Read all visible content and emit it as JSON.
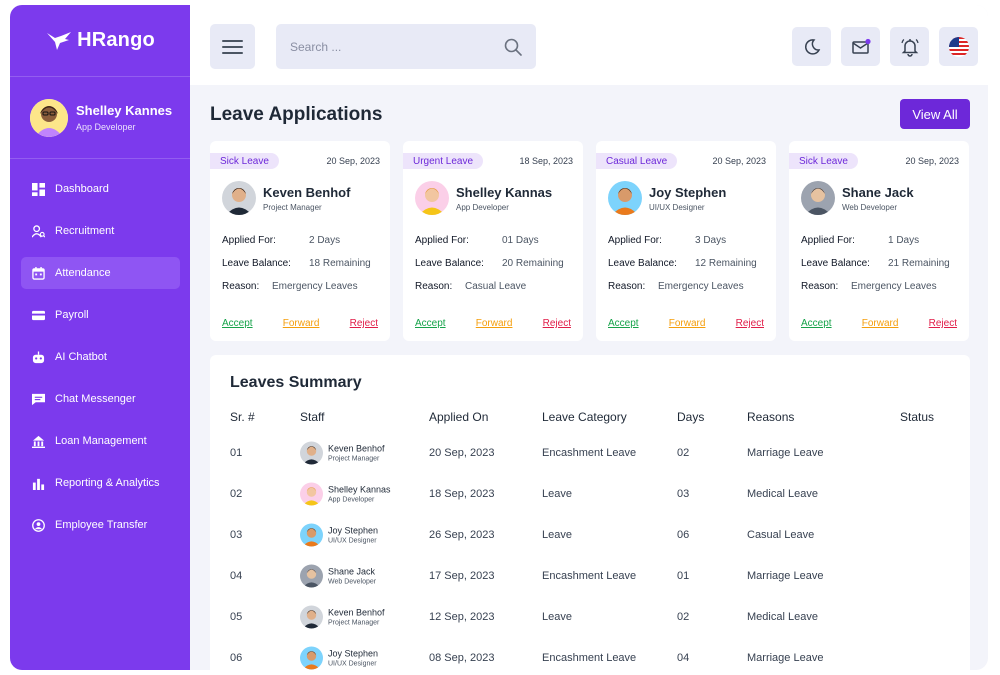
{
  "brand": {
    "name": "HRango"
  },
  "user": {
    "name": "Shelley Kannes",
    "role": "App Developer"
  },
  "nav": [
    {
      "label": "Dashboard",
      "icon": "dashboard-icon",
      "active": false
    },
    {
      "label": "Recruitment",
      "icon": "recruitment-icon",
      "active": false
    },
    {
      "label": "Attendance",
      "icon": "calendar-icon",
      "active": true
    },
    {
      "label": "Payroll",
      "icon": "card-icon",
      "active": false
    },
    {
      "label": "AI Chatbot",
      "icon": "robot-icon",
      "active": false
    },
    {
      "label": "Chat Messenger",
      "icon": "chat-icon",
      "active": false
    },
    {
      "label": "Loan Management",
      "icon": "loan-icon",
      "active": false
    },
    {
      "label": "Reporting & Analytics",
      "icon": "chart-icon",
      "active": false
    },
    {
      "label": "Employee Transfer",
      "icon": "transfer-icon",
      "active": false
    }
  ],
  "search": {
    "placeholder": "Search ..."
  },
  "leave_applications": {
    "title": "Leave Applications",
    "view_all": "View All",
    "labels": {
      "applied_for": "Applied For:",
      "leave_balance": "Leave Balance:",
      "reason": "Reason:"
    },
    "actions": {
      "accept": "Accept",
      "forward": "Forward",
      "reject": "Reject"
    },
    "cards": [
      {
        "type": "Sick Leave",
        "date": "20 Sep, 2023",
        "name": "Keven Benhof",
        "role": "Project Manager",
        "applied_for": "2 Days",
        "balance": "18 Remaining",
        "reason": "Emergency Leaves",
        "avatar": "man-dark"
      },
      {
        "type": "Urgent Leave",
        "date": "18 Sep, 2023",
        "name": "Shelley Kannas",
        "role": "App Developer",
        "applied_for": "01 Days",
        "balance": "20 Remaining",
        "reason": "Casual Leave",
        "avatar": "woman"
      },
      {
        "type": "Casual Leave",
        "date": "20 Sep, 2023",
        "name": "Joy Stephen",
        "role": "UI/UX Designer",
        "applied_for": "3 Days",
        "balance": "12 Remaining",
        "reason": "Emergency Leaves",
        "avatar": "man-orange"
      },
      {
        "type": "Sick Leave",
        "date": "20 Sep, 2023",
        "name": "Shane Jack",
        "role": "Web Developer",
        "applied_for": "1 Days",
        "balance": "21 Remaining",
        "reason": "Emergency Leaves",
        "avatar": "man-gray"
      }
    ]
  },
  "leaves_summary": {
    "title": "Leaves Summary",
    "columns": [
      "Sr. #",
      "Staff",
      "Applied On",
      "Leave Category",
      "Days",
      "Reasons",
      "Status"
    ],
    "rows": [
      {
        "sr": "01",
        "name": "Keven Benhof",
        "role": "Project Manager",
        "applied_on": "20 Sep, 2023",
        "category": "Encashment Leave",
        "days": "02",
        "reason": "Marriage Leave",
        "avatar": "man-dark"
      },
      {
        "sr": "02",
        "name": "Shelley Kannas",
        "role": "App Developer",
        "applied_on": "18 Sep, 2023",
        "category": "Leave",
        "days": "03",
        "reason": "Medical Leave",
        "avatar": "woman"
      },
      {
        "sr": "03",
        "name": "Joy Stephen",
        "role": "UI/UX Designer",
        "applied_on": "26 Sep, 2023",
        "category": "Leave",
        "days": "06",
        "reason": "Casual Leave",
        "avatar": "man-orange"
      },
      {
        "sr": "04",
        "name": "Shane Jack",
        "role": "Web Developer",
        "applied_on": "17 Sep, 2023",
        "category": "Encashment Leave",
        "days": "01",
        "reason": "Marriage Leave",
        "avatar": "man-gray"
      },
      {
        "sr": "05",
        "name": "Keven Benhof",
        "role": "Project Manager",
        "applied_on": "12 Sep, 2023",
        "category": "Leave",
        "days": "02",
        "reason": "Medical Leave",
        "avatar": "man-dark"
      },
      {
        "sr": "06",
        "name": "Joy Stephen",
        "role": "UI/UX Designer",
        "applied_on": "08 Sep, 2023",
        "category": "Encashment Leave",
        "days": "04",
        "reason": "Marriage Leave",
        "avatar": "man-orange"
      }
    ]
  },
  "colors": {
    "primary": "#7c3aed",
    "accept": "#16a34a",
    "forward": "#f59e0b",
    "reject": "#e11d48"
  }
}
